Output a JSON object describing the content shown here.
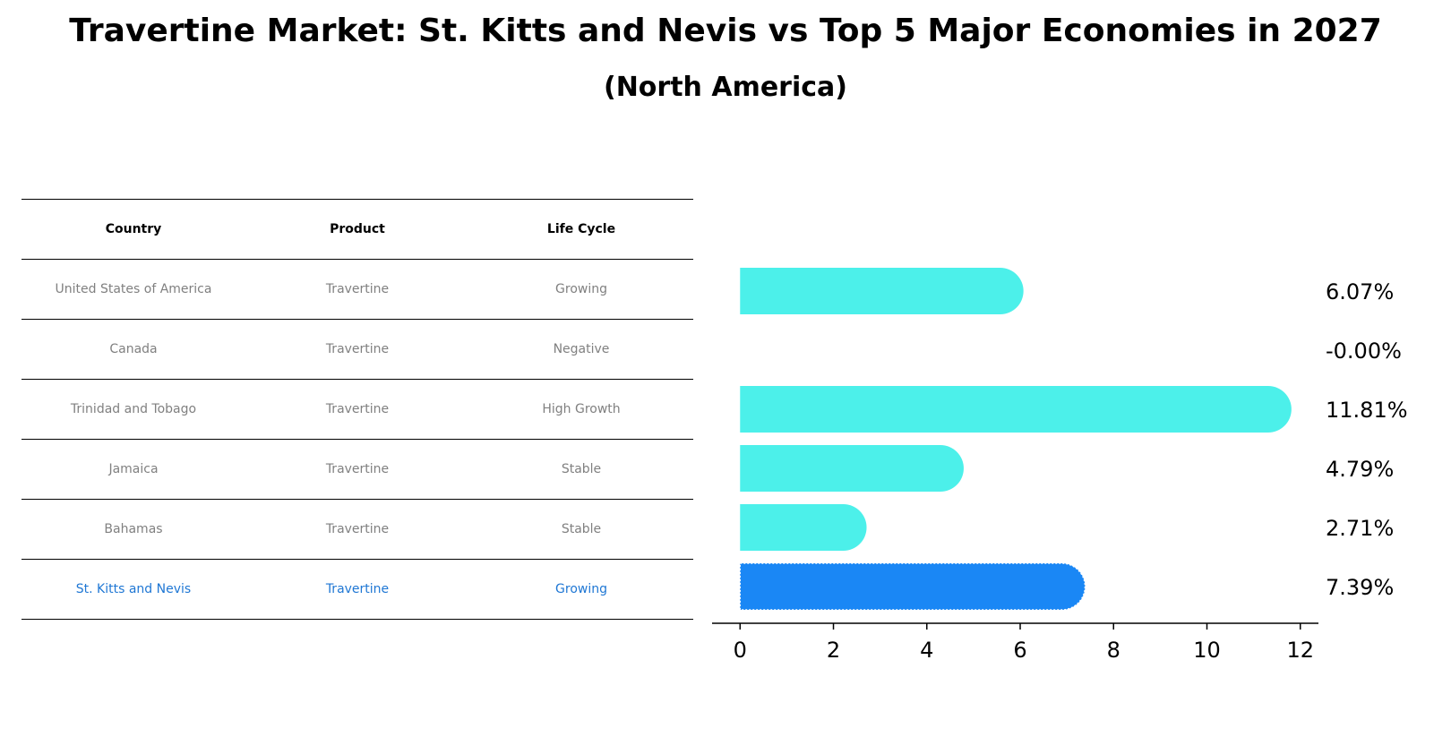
{
  "title": "Travertine Market: St. Kitts and Nevis vs Top 5 Major Economies in 2027",
  "subtitle": "(North America)",
  "table": {
    "headers": [
      "Country",
      "Product",
      "Life Cycle"
    ],
    "rows": [
      {
        "country": "United States of America",
        "product": "Travertine",
        "life_cycle": "Growing"
      },
      {
        "country": "Canada",
        "product": "Travertine",
        "life_cycle": "Negative"
      },
      {
        "country": "Trinidad and Tobago",
        "product": "Travertine",
        "life_cycle": "High Growth"
      },
      {
        "country": "Jamaica",
        "product": "Travertine",
        "life_cycle": "Stable"
      },
      {
        "country": "Bahamas",
        "product": "Travertine",
        "life_cycle": "Stable"
      },
      {
        "country": "St. Kitts and Nevis",
        "product": "Travertine",
        "life_cycle": "Growing"
      }
    ],
    "highlight_row": 5,
    "highlight_color": "#1f77d4",
    "text_color": "#808080"
  },
  "chart_data": {
    "type": "bar",
    "orientation": "horizontal",
    "categories": [
      "United States of America",
      "Canada",
      "Trinidad and Tobago",
      "Jamaica",
      "Bahamas",
      "St. Kitts and Nevis"
    ],
    "values": [
      6.07,
      -0.0,
      11.81,
      4.79,
      2.71,
      7.39
    ],
    "value_labels": [
      "6.07%",
      "-0.00%",
      "11.81%",
      "4.79%",
      "2.71%",
      "7.39%"
    ],
    "xlim": [
      -0.6,
      12.35
    ],
    "x_ticks": [
      0,
      2,
      4,
      6,
      8,
      10,
      12
    ],
    "bar_color": "#4cf0ea",
    "highlight_color": "#1a87f5",
    "highlight_index": 5,
    "grid": false,
    "legend": "none"
  }
}
